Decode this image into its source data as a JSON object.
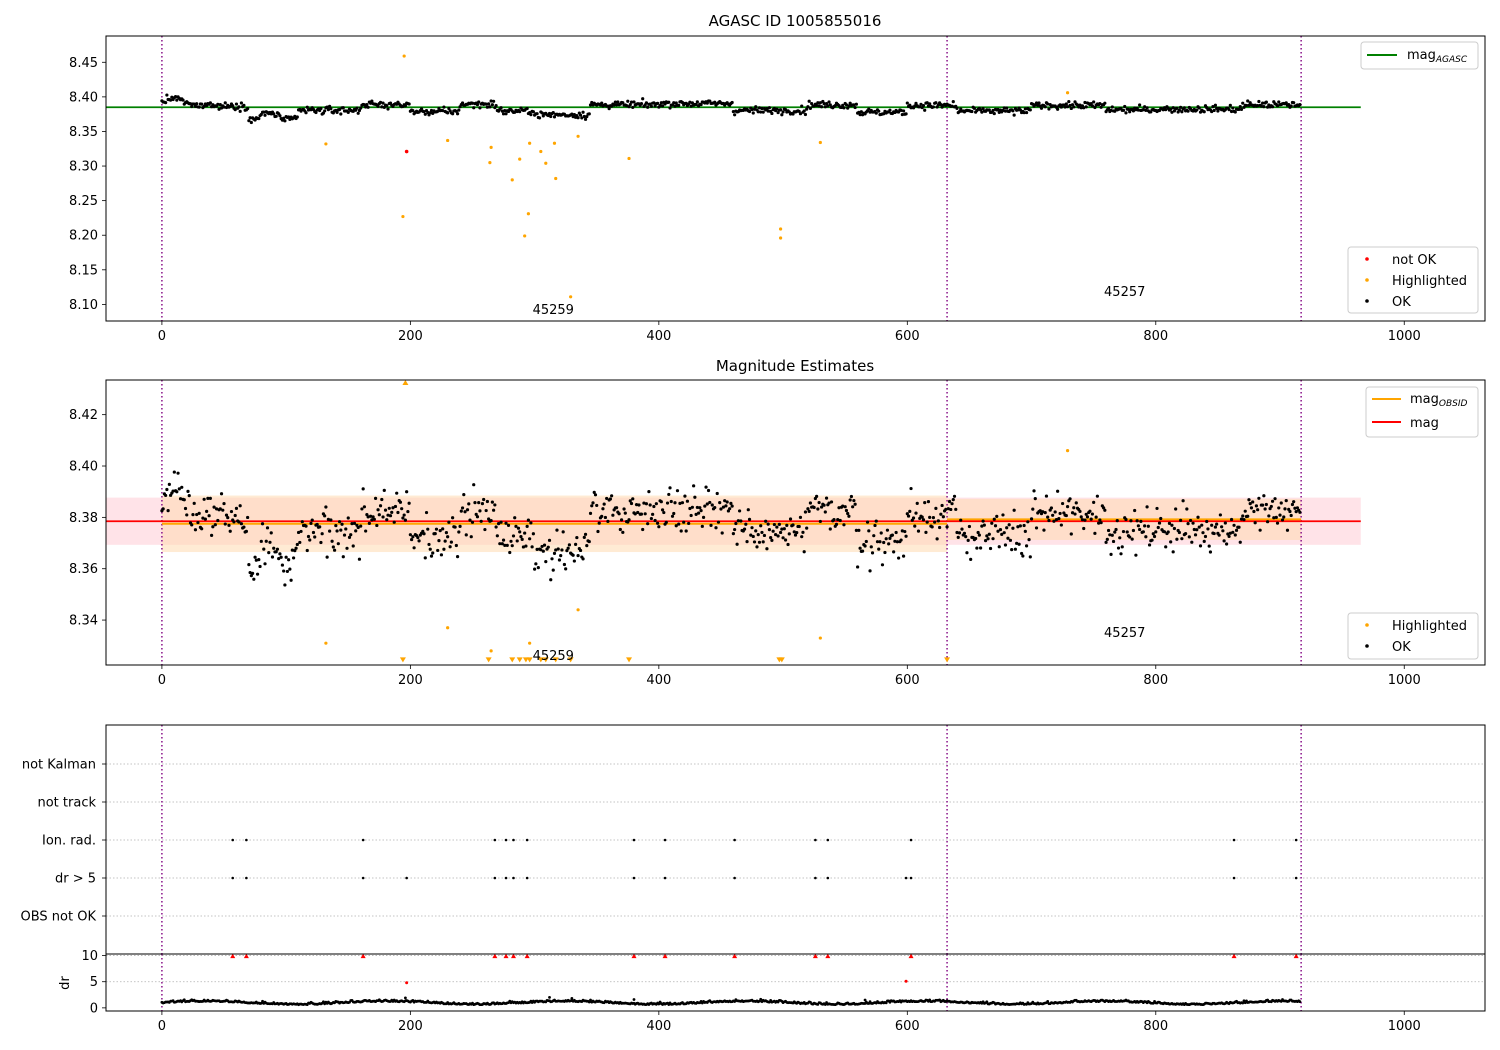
{
  "colors": {
    "ok": "#000000",
    "highlighted": "#ffa500",
    "not_ok": "#ff0000",
    "mag_agasc": "#008000",
    "mag_obsid": "#ffa500",
    "mag": "#ff0000",
    "obsid_boundary": "#800080",
    "mag_band": "#ffc0cb",
    "obsid_band": "#ffdab0",
    "grid": "#b0b0b0"
  },
  "chart_data": [
    {
      "type": "scatter",
      "title": "AGASC ID 1005855016",
      "xlim": [
        -45,
        1065
      ],
      "ylim": [
        8.076,
        8.488
      ],
      "xticks": [
        "0",
        "200",
        "400",
        "600",
        "800",
        "1000"
      ],
      "yticks": [
        "8.10",
        "8.15",
        "8.20",
        "8.25",
        "8.30",
        "8.35",
        "8.40",
        "8.45"
      ],
      "legend_lines": {
        "mag_agasc_main": "mag",
        "mag_agasc_sub": "AGASC"
      },
      "legend_points": [
        "not OK",
        "Highlighted",
        "OK"
      ],
      "hline_mag_agasc": {
        "value": 8.385,
        "x": [
          -45,
          965
        ]
      },
      "obsid_boundaries": [
        0,
        632,
        917
      ],
      "obsid_labels": [
        {
          "text": "45259",
          "x": 315,
          "y": 8.092
        },
        {
          "text": "45257",
          "x": 775,
          "y": 8.118
        }
      ],
      "highlighted_points": [
        [
          132,
          8.332
        ],
        [
          195,
          8.459
        ],
        [
          194,
          8.227
        ],
        [
          230,
          8.337
        ],
        [
          264,
          8.305
        ],
        [
          265,
          8.327
        ],
        [
          282,
          8.28
        ],
        [
          288,
          8.31
        ],
        [
          295,
          8.231
        ],
        [
          296,
          8.333
        ],
        [
          292,
          8.199
        ],
        [
          305,
          8.321
        ],
        [
          309,
          8.304
        ],
        [
          316,
          8.333
        ],
        [
          317,
          8.282
        ],
        [
          329,
          8.111
        ],
        [
          335,
          8.343
        ],
        [
          376,
          8.311
        ],
        [
          498,
          8.209
        ],
        [
          498,
          8.196
        ],
        [
          530,
          8.334
        ],
        [
          729,
          8.406
        ]
      ],
      "not_ok_points": [
        [
          197,
          8.321
        ]
      ]
    },
    {
      "type": "scatter",
      "title": "Magnitude Estimates",
      "xlim": [
        -45,
        1065
      ],
      "ylim": [
        8.3225,
        8.4335
      ],
      "xticks": [
        "0",
        "200",
        "400",
        "600",
        "800",
        "1000"
      ],
      "yticks": [
        "8.34",
        "8.36",
        "8.38",
        "8.40",
        "8.42"
      ],
      "legend_lines": {
        "mag_obsid_main": "mag",
        "mag_obsid_sub": "OBSID",
        "mag": "mag"
      },
      "legend_points": [
        "Highlighted",
        "OK"
      ],
      "mag_line": {
        "value": 8.3785,
        "band": [
          8.3693,
          8.3877
        ],
        "x": [
          -45,
          965
        ]
      },
      "obsid_mag": [
        {
          "x": [
            0,
            632
          ],
          "value": 8.3775,
          "band": [
            8.3665,
            8.3885
          ]
        },
        {
          "x": [
            632,
            917
          ],
          "value": 8.3792,
          "band": [
            8.3712,
            8.3872
          ]
        }
      ],
      "obsid_boundaries": [
        0,
        632,
        917
      ],
      "obsid_labels": [
        {
          "text": "45259",
          "x": 315,
          "y": 8.326
        },
        {
          "text": "45257",
          "x": 775,
          "y": 8.335
        }
      ],
      "highlighted_points": [
        [
          132,
          8.331
        ],
        [
          230,
          8.337
        ],
        [
          265,
          8.328
        ],
        [
          296,
          8.331
        ],
        [
          335,
          8.344
        ],
        [
          530,
          8.333
        ],
        [
          729,
          8.406
        ]
      ],
      "highlighted_up_markers": [
        [
          196,
          8.4335
        ]
      ],
      "highlighted_down_markers": [
        [
          194,
          8.3235
        ],
        [
          263,
          8.3235
        ],
        [
          282,
          8.3235
        ],
        [
          288,
          8.3235
        ],
        [
          293,
          8.3235
        ],
        [
          296,
          8.3235
        ],
        [
          305,
          8.3235
        ],
        [
          309,
          8.3235
        ],
        [
          317,
          8.3235
        ],
        [
          329,
          8.3235
        ],
        [
          376,
          8.3235
        ],
        [
          497,
          8.3235
        ],
        [
          499,
          8.3235
        ],
        [
          632,
          8.3235
        ]
      ]
    },
    {
      "type": "scatter",
      "title": "",
      "xlim": [
        -45,
        1065
      ],
      "categories": [
        "not Kalman",
        "not track",
        "Ion. rad.",
        "dr > 5",
        "OBS not OK"
      ],
      "flags": {
        "ion_rad": [
          57,
          68,
          162,
          268,
          277,
          283,
          294,
          380,
          405,
          461,
          526,
          536,
          603,
          863,
          913
        ],
        "dr_gt_5": [
          57,
          68,
          162,
          197,
          268,
          277,
          283,
          294,
          380,
          405,
          461,
          526,
          536,
          599,
          603,
          863,
          913
        ],
        "not_kalman": [],
        "not_track": [],
        "obs_not_ok": []
      }
    },
    {
      "type": "scatter",
      "title": "",
      "ylabel": "dr",
      "xlim": [
        -45,
        1065
      ],
      "ylim": [
        -0.6,
        10.3
      ],
      "xticks": [
        "0",
        "200",
        "400",
        "600",
        "800",
        "1000"
      ],
      "yticks": [
        "0",
        "5",
        "10"
      ],
      "clipped_markers": [
        57,
        68,
        162,
        268,
        277,
        283,
        294,
        380,
        405,
        461,
        526,
        536,
        603,
        863,
        913
      ],
      "outlier_points": [
        [
          197,
          4.8
        ],
        [
          599,
          5.1
        ]
      ]
    }
  ]
}
